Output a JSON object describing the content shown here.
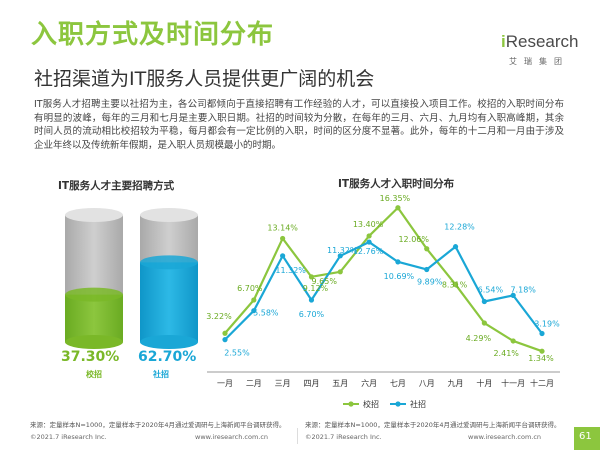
{
  "header": {
    "title": "入职方式及时间分布",
    "subtitle": "社招渠道为IT服务人员提供更广阔的机会",
    "logo_i": "i",
    "logo_rest": "Research",
    "logo_cn": "艾瑞集团"
  },
  "body": {
    "paragraph": "IT服务人才招聘主要以社招为主，各公司都倾向于直接招聘有工作经验的人才，可以直接投入项目工作。校招的入职时间分布有明显的波峰，每年的三月和七月是主要入职日期。社招的时间较为分散，在每年的三月、六月、九月均有入职高峰期，其余时间人员的流动相比校招较为平稳，每月都会有一定比例的入职，时间的区分度不显著。此外，每年的十二月和一月由于涉及企业年终以及传统新年假期，是入职人员规模最小的时期。"
  },
  "left_panel": {
    "title": "IT服务人才主要招聘方式",
    "items": [
      {
        "label": "校招",
        "value_text": "37.30%",
        "value": 37.3,
        "color": "#7ab828"
      },
      {
        "label": "社招",
        "value_text": "62.70%",
        "value": 62.7,
        "color": "#1aa7d6"
      }
    ]
  },
  "chart_data": {
    "type": "line",
    "title": "IT服务人才入职时间分布",
    "categories": [
      "一月",
      "二月",
      "三月",
      "四月",
      "五月",
      "六月",
      "七月",
      "八月",
      "九月",
      "十月",
      "十一月",
      "十二月"
    ],
    "series": [
      {
        "name": "校招",
        "color": "#8cc63e",
        "values": [
          3.22,
          6.7,
          13.14,
          9.12,
          9.65,
          13.4,
          16.35,
          12.06,
          8.31,
          4.29,
          2.41,
          1.34
        ],
        "labels": [
          "3.22%",
          "6.70%",
          "13.14%",
          "9.12%",
          "9.65%",
          "13.40%",
          "16.35%",
          "12.06%",
          "8.31%",
          "4.29%",
          "2.41%",
          "1.34%"
        ]
      },
      {
        "name": "社招",
        "color": "#1aa7d6",
        "values": [
          2.55,
          5.58,
          11.32,
          6.7,
          11.32,
          12.76,
          10.69,
          9.89,
          12.28,
          6.54,
          7.18,
          3.19
        ],
        "labels": [
          "2.55%",
          "5.58%",
          "11.32%",
          "6.70%",
          "11.32%",
          "12.76%",
          "10.69%",
          "9.89%",
          "12.28%",
          "6.54%",
          "7.18%",
          "3.19%"
        ]
      }
    ],
    "legend_position": "bottom",
    "grid": false
  },
  "footer": {
    "source_left": "来源：定量样本N=1000，定量样本于2020年4月通过爱调研与上海新闻平台调研获得。",
    "source_right": "来源：定量样本N=1000，定量样本于2020年4月通过爱调研与上海新闻平台调研获得。",
    "copyright_left": "©2021.7 iResearch Inc.",
    "url_left": "www.iresearch.com.cn",
    "copyright_right": "©2021.7 iResearch Inc.",
    "url_right": "www.iresearch.com.cn",
    "page": "61"
  }
}
